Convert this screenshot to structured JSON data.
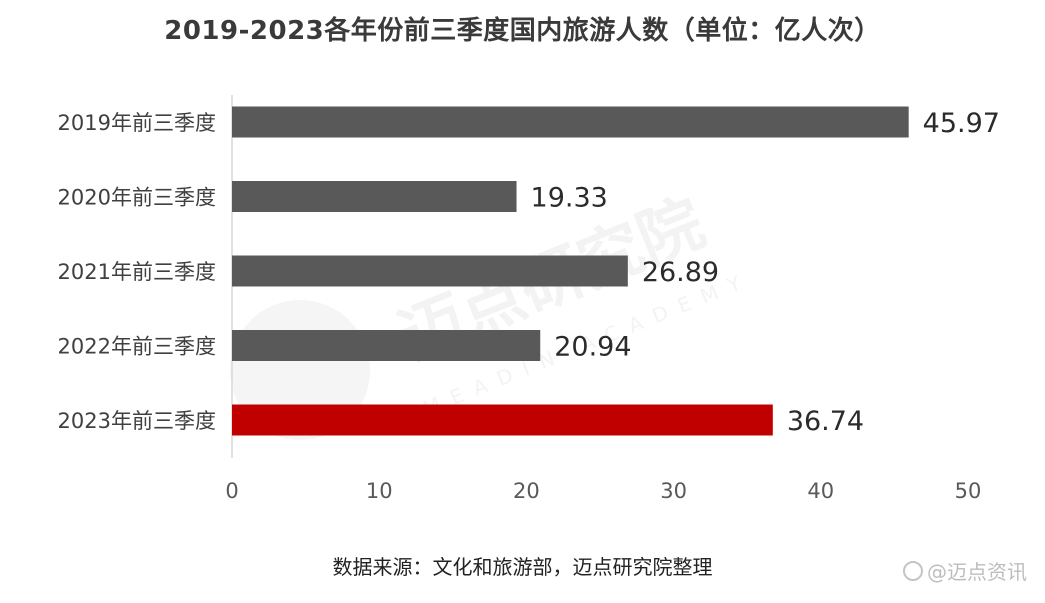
{
  "chart_data": {
    "type": "bar",
    "orientation": "horizontal",
    "title": "2019-2023各年份前三季度国内旅游人数（单位：亿人次）",
    "categories": [
      "2019年前三季度",
      "2020年前三季度",
      "2021年前三季度",
      "2022年前三季度",
      "2023年前三季度"
    ],
    "values": [
      45.97,
      19.33,
      26.89,
      20.94,
      36.74
    ],
    "value_labels": [
      "45.97",
      "19.33",
      "26.89",
      "20.94",
      "36.74"
    ],
    "xlim": [
      0,
      50
    ],
    "xticks": [
      0,
      10,
      20,
      30,
      40,
      50
    ],
    "xtick_labels": [
      "0",
      "10",
      "20",
      "30",
      "40",
      "50"
    ],
    "grid": false,
    "bar_colors": [
      "#595959",
      "#595959",
      "#595959",
      "#595959",
      "#c00000"
    ],
    "highlight_category": "2023年前三季度"
  },
  "source_note": "数据来源：文化和旅游部，迈点研究院整理",
  "watermark": {
    "text_cn": "迈点研究院",
    "text_en": "MEADIN ACADEMY",
    "badge_text": "@迈点资讯"
  },
  "colors": {
    "bar_default": "#595959",
    "bar_highlight": "#c00000",
    "axis": "#d9d9d9",
    "text": "#404040"
  }
}
